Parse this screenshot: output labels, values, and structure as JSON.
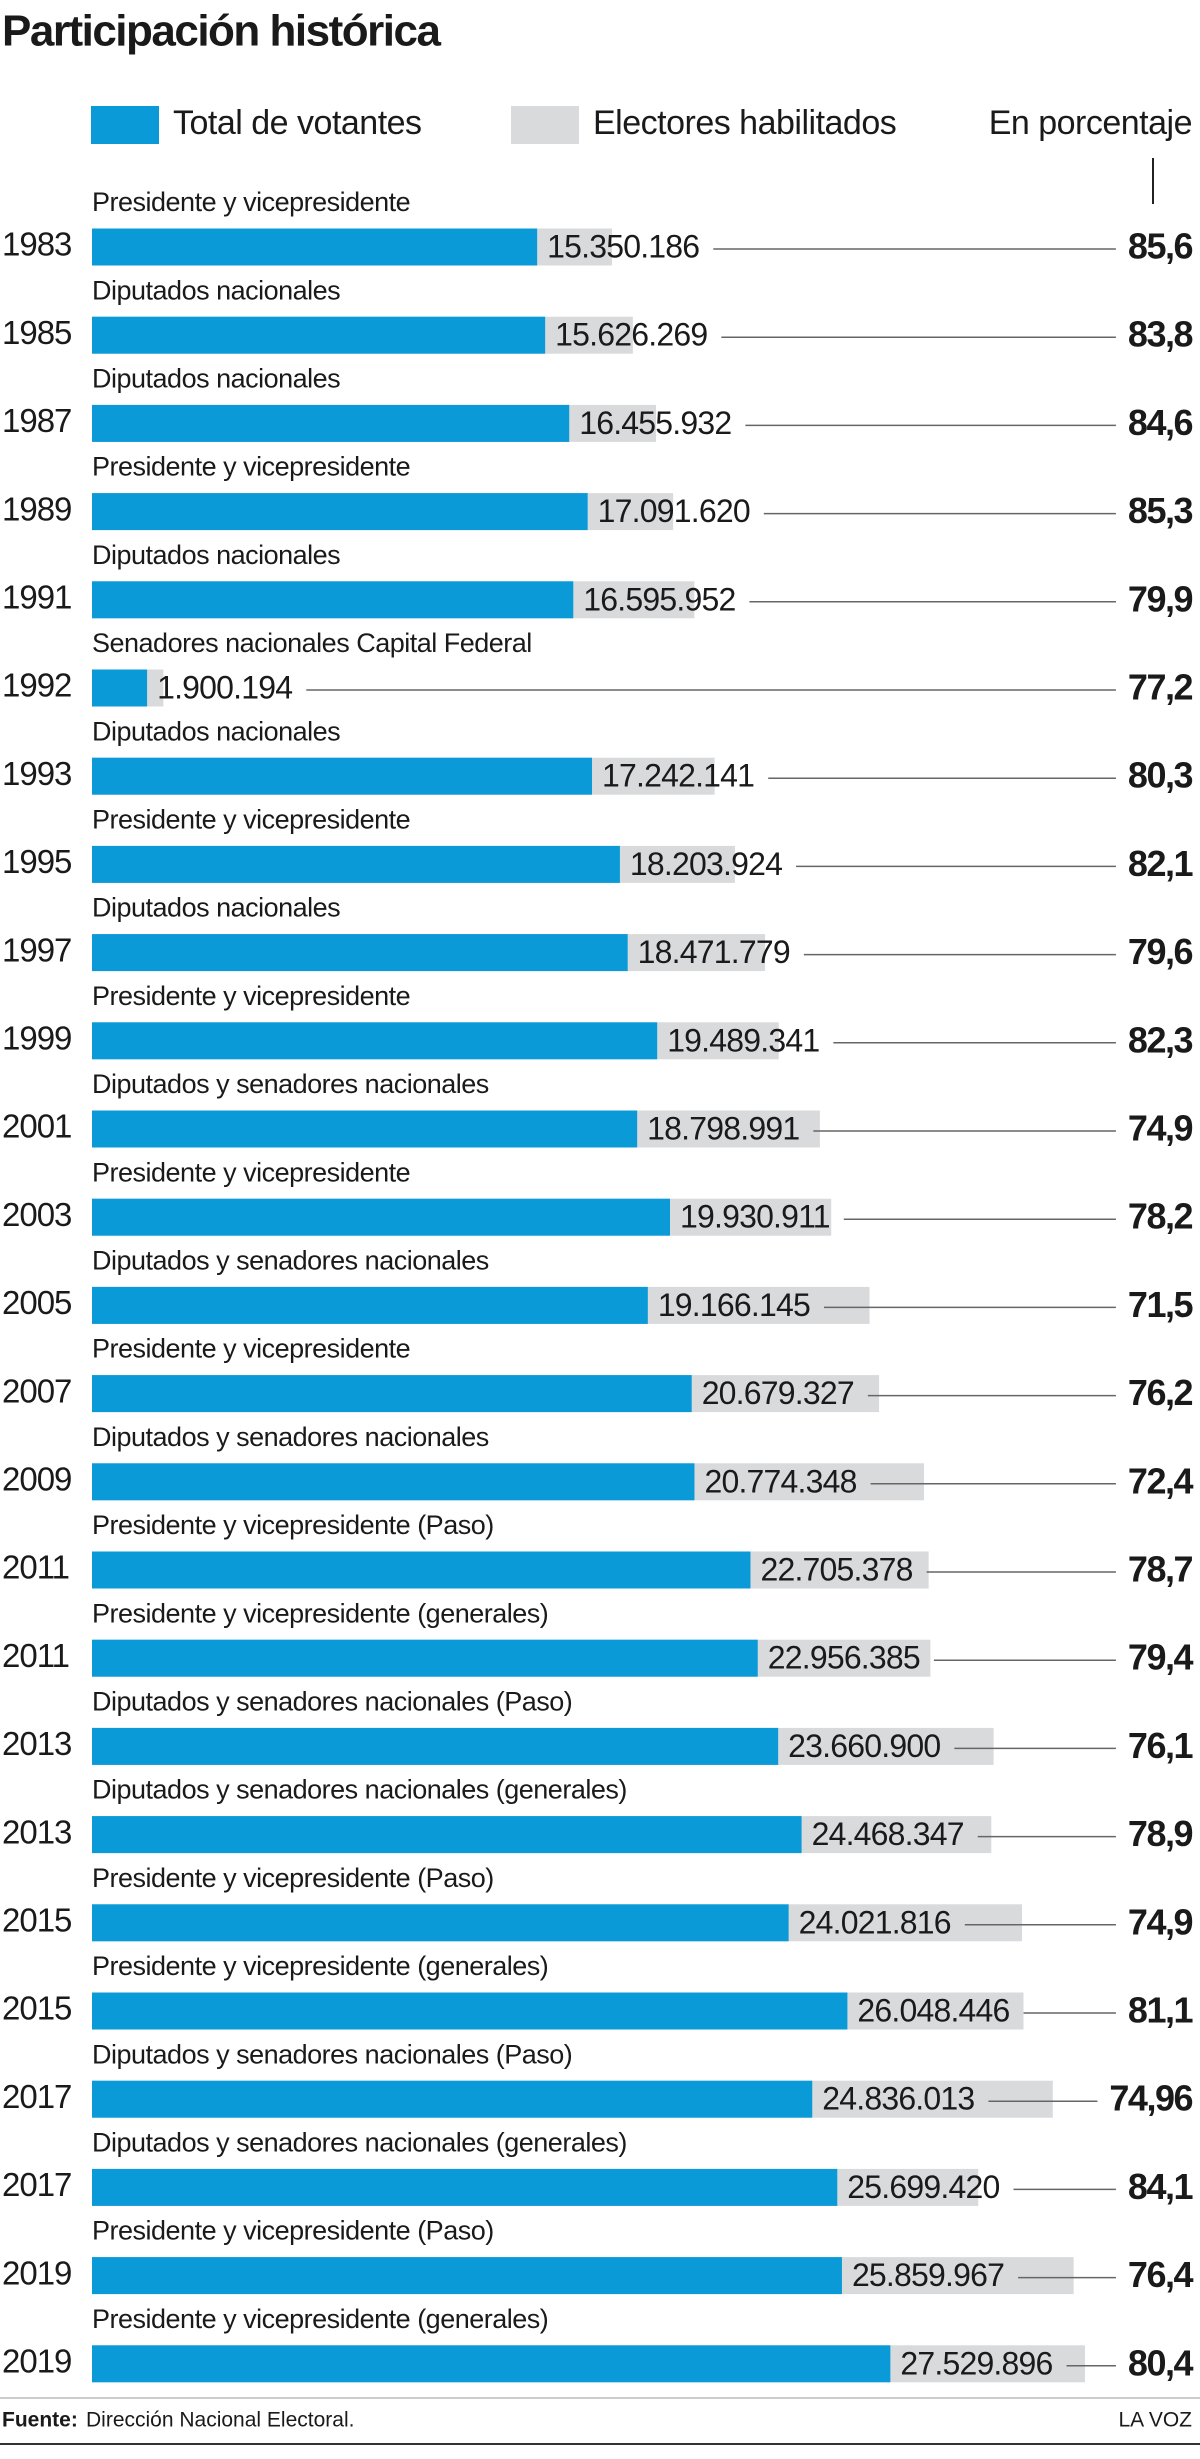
{
  "chart_data": {
    "type": "bar",
    "title": "Participación histórica",
    "categories": [
      "1983",
      "1985",
      "1987",
      "1989",
      "1991",
      "1992",
      "1993",
      "1995",
      "1997",
      "1999",
      "2001",
      "2003",
      "2005",
      "2007",
      "2009",
      "2011",
      "2011",
      "2013",
      "2013",
      "2015",
      "2015",
      "2017",
      "2017",
      "2019",
      "2019"
    ],
    "descriptions": [
      "Presidente y vicepresidente",
      "Diputados nacionales",
      "Diputados nacionales",
      "Presidente y vicepresidente",
      "Diputados nacionales",
      "Senadores nacionales Capital Federal",
      "Diputados nacionales",
      "Presidente y vicepresidente",
      "Diputados nacionales",
      "Presidente y vicepresidente",
      "Diputados y senadores nacionales",
      "Presidente y vicepresidente",
      "Diputados y senadores nacionales",
      "Presidente y vicepresidente",
      "Diputados y senadores nacionales",
      "Presidente y vicepresidente (Paso)",
      "Presidente y vicepresidente (generales)",
      "Diputados y senadores nacionales (Paso)",
      "Diputados y senadores nacionales (generales)",
      "Presidente y vicepresidente (Paso)",
      "Presidente y vicepresidente (generales)",
      "Diputados y senadores nacionales (Paso)",
      "Diputados y senadores nacionales (generales)",
      "Presidente y vicepresidente (Paso)",
      "Presidente y vicepresidente (generales)"
    ],
    "series": [
      {
        "name": "Total de votantes",
        "color": "#0a9ad8",
        "values": [
          15350186,
          15626269,
          16455932,
          17091620,
          16595952,
          1900194,
          17242141,
          18203924,
          18471779,
          19489341,
          18798991,
          19930911,
          19166145,
          20679327,
          20774348,
          22705378,
          22956385,
          23660900,
          24468347,
          24021816,
          26048446,
          24836013,
          25699420,
          25859967,
          27529896
        ],
        "value_labels": [
          "15.350.186",
          "15.626.269",
          "16.455.932",
          "17.091.620",
          "16.595.952",
          "1.900.194",
          "17.242.141",
          "18.203.924",
          "18.471.779",
          "19.489.341",
          "18.798.991",
          "19.930.911",
          "19.166.145",
          "20.679.327",
          "20.774.348",
          "22.705.378",
          "22.956.385",
          "23.660.900",
          "24.468.347",
          "24.021.816",
          "26.048.446",
          "24.836.013",
          "25.699.420",
          "25.859.967",
          "27.529.896"
        ]
      },
      {
        "name": "Electores habilitados",
        "color": "#d9dadc",
        "values": [
          17930000,
          18650000,
          19450000,
          20040000,
          20770000,
          2460000,
          21470000,
          22170000,
          23210000,
          23680000,
          25100000,
          25490000,
          26810000,
          27140000,
          28690000,
          28850000,
          28910000,
          31090000,
          31010000,
          32070000,
          32120000,
          33130000,
          30560000,
          33850000,
          34240000
        ]
      }
    ],
    "percentages": {
      "name": "En porcentaje",
      "values": [
        85.6,
        83.8,
        84.6,
        85.3,
        79.9,
        77.2,
        80.3,
        82.1,
        79.6,
        82.3,
        74.9,
        78.2,
        71.5,
        76.2,
        72.4,
        78.7,
        79.4,
        76.1,
        78.9,
        74.9,
        81.1,
        74.96,
        84.1,
        76.4,
        80.4
      ],
      "value_labels": [
        "85,6",
        "83,8",
        "84,6",
        "85,3",
        "79,9",
        "77,2",
        "80,3",
        "82,1",
        "79,6",
        "82,3",
        "74,9",
        "78,2",
        "71,5",
        "76,2",
        "72,4",
        "78,7",
        "79,4",
        "76,1",
        "78,9",
        "74,9",
        "81,1",
        "74,96",
        "84,1",
        "76,4",
        "80,4"
      ]
    },
    "source_label": "Fuente:",
    "source": "Dirección Nacional Electoral.",
    "credit": "LA VOZ"
  }
}
